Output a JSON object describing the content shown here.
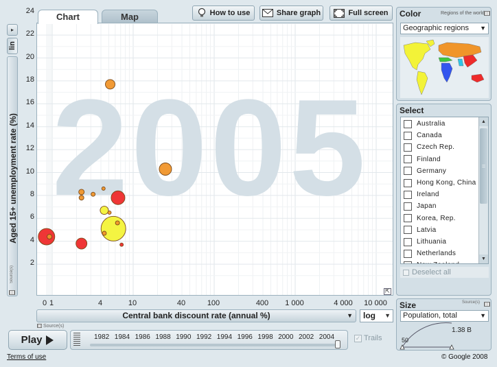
{
  "tabs": {
    "chart": "Chart",
    "map": "Map"
  },
  "toolbar": {
    "how_to_use": "How to use",
    "share_graph": "Share graph",
    "full_screen": "Full screen"
  },
  "year_watermark": "2005",
  "y_axis": {
    "scale_button": "lin",
    "label": "Aged 15+ unemployment rate (%)"
  },
  "x_axis": {
    "label": "Central bank discount rate (annual %)",
    "scale": "log"
  },
  "source_label": "Source(s)",
  "chart_data": {
    "type": "scatter",
    "xlabel": "Central bank discount rate (annual %)",
    "ylabel": "Aged 15+ unemployment rate (%)",
    "x_scale": "log",
    "y_scale": "linear",
    "ylim": [
      0.5,
      24.5
    ],
    "x_ticks": [
      "0",
      "1",
      "4",
      "10",
      "40",
      "100",
      "400",
      "1 000",
      "4 000",
      "10 000"
    ],
    "y_ticks": [
      2,
      4,
      6,
      8,
      10,
      12,
      14,
      16,
      18,
      20,
      22,
      24
    ],
    "points": [
      {
        "x": 5.2,
        "y": 17.7,
        "size": 7,
        "color": "#f0952a"
      },
      {
        "x": 25,
        "y": 10.3,
        "size": 9,
        "color": "#f0952a"
      },
      {
        "x": 2.3,
        "y": 8.3,
        "size": 4,
        "color": "#f0952a"
      },
      {
        "x": 2.3,
        "y": 7.8,
        "size": 3.5,
        "color": "#f0952a"
      },
      {
        "x": 3.2,
        "y": 8.1,
        "size": 3,
        "color": "#f0952a"
      },
      {
        "x": 4.3,
        "y": 8.6,
        "size": 2.5,
        "color": "#f0952a"
      },
      {
        "x": 6.5,
        "y": 7.8,
        "size": 10,
        "color": "#ee2b2b"
      },
      {
        "x": 4.4,
        "y": 6.7,
        "size": 6,
        "color": "#f3f338"
      },
      {
        "x": 5.1,
        "y": 6.5,
        "size": 2.5,
        "color": "#f0952a"
      },
      {
        "x": 5.7,
        "y": 5.1,
        "size": 18,
        "color": "#f3f338"
      },
      {
        "x": 6.4,
        "y": 5.6,
        "size": 3,
        "color": "#f0952a"
      },
      {
        "x": 4.4,
        "y": 4.7,
        "size": 3,
        "color": "#f0952a"
      },
      {
        "x": 0.18,
        "y": 4.4,
        "size": 12,
        "color": "#ee2b2b"
      },
      {
        "x": 0.6,
        "y": 4.4,
        "size": 3.5,
        "color": "#f0952a"
      },
      {
        "x": 2.3,
        "y": 3.8,
        "size": 8,
        "color": "#ee2b2b"
      },
      {
        "x": 7.2,
        "y": 3.7,
        "size": 2.5,
        "color": "#ee2b2b"
      }
    ]
  },
  "timeline": {
    "play_label": "Play",
    "years": [
      "1982",
      "1984",
      "1986",
      "1988",
      "1990",
      "1992",
      "1994",
      "1996",
      "1998",
      "2000",
      "2002",
      "2004"
    ],
    "trails_label": "Trails",
    "progress": 1.0
  },
  "color_panel": {
    "title": "Color",
    "subtitle": "Regions of the world",
    "selected": "Geographic regions",
    "region_colors": {
      "america": "#f3f338",
      "europe_central_asia": "#f0952a",
      "middle_east_north_africa": "#3ec73e",
      "sub_saharan_africa": "#3355ee",
      "east_asia_pacific": "#ee2b2b",
      "south_asia": "#2ec5e8"
    }
  },
  "select_panel": {
    "title": "Select",
    "countries": [
      "Australia",
      "Canada",
      "Czech Rep.",
      "Finland",
      "Germany",
      "Hong Kong, China",
      "Ireland",
      "Japan",
      "Korea, Rep.",
      "Latvia",
      "Lithuania",
      "Netherlands",
      "New Zealand"
    ],
    "deselect_label": "Deselect all"
  },
  "size_panel": {
    "title": "Size",
    "selected": "Population, total",
    "min_label": "50",
    "max_label": "1.38 B"
  },
  "footer": {
    "terms": "Terms of use",
    "copyright": "© Google 2008"
  }
}
